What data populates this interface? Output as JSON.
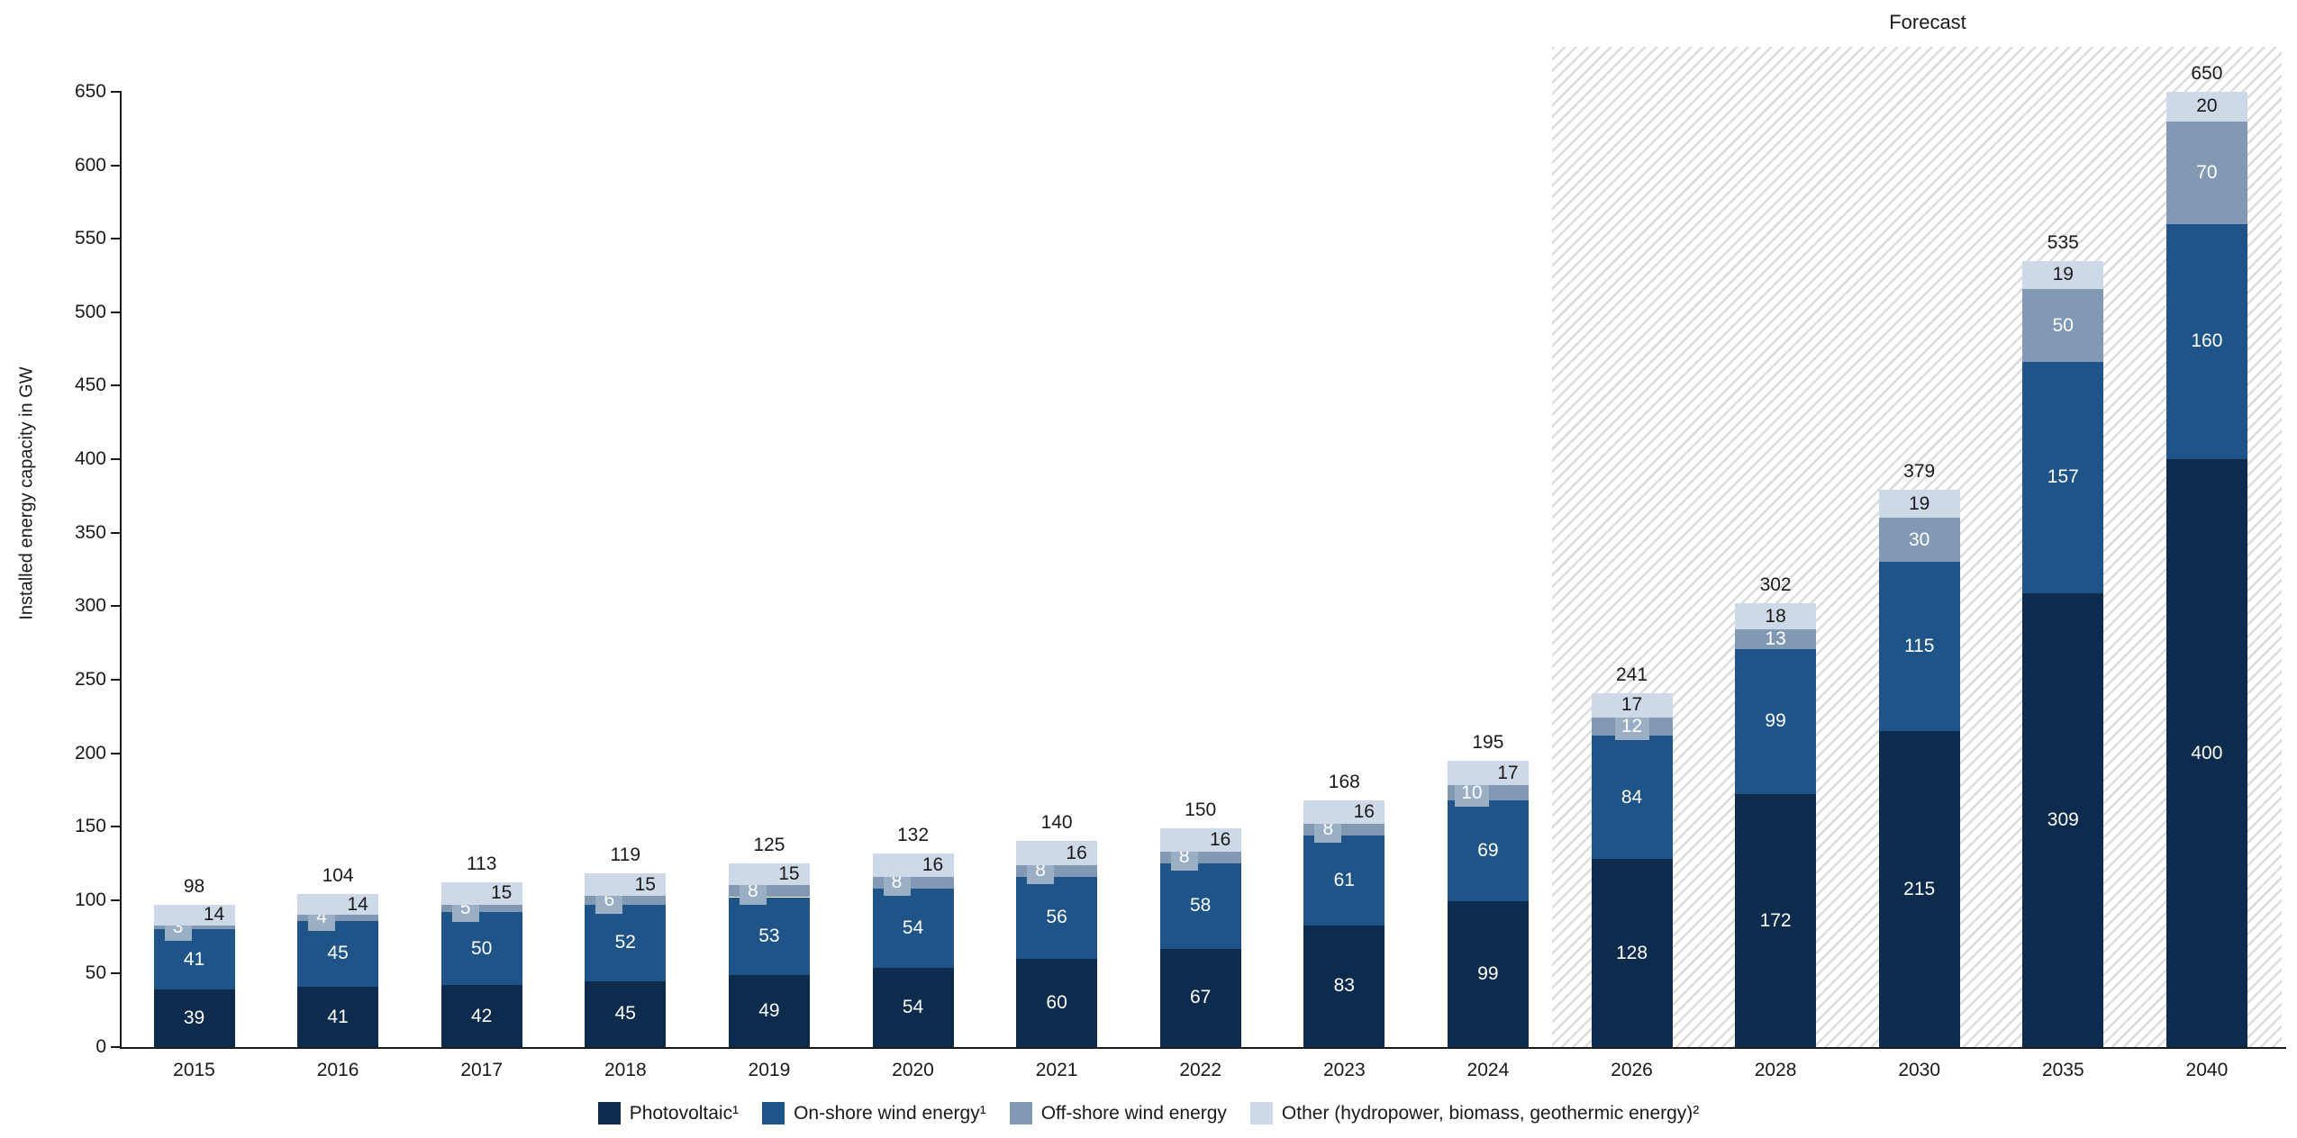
{
  "chart_data": {
    "type": "bar",
    "stacked": true,
    "ylabel": "Installed energy capacity in GW",
    "forecast_label": "Forecast",
    "ylim": [
      0,
      650
    ],
    "ytick_step": 50,
    "grid": false,
    "legend_position": "bottom",
    "categories": [
      "2015",
      "2016",
      "2017",
      "2018",
      "2019",
      "2020",
      "2021",
      "2022",
      "2023",
      "2024",
      "2026",
      "2028",
      "2030",
      "2035",
      "2040"
    ],
    "forecast_from_index": 10,
    "series": [
      {
        "name": "Photovoltaic¹",
        "color": "#0d2b4d",
        "label_color": "#ffffff",
        "values": [
          39,
          41,
          42,
          45,
          49,
          54,
          60,
          67,
          83,
          99,
          128,
          172,
          215,
          309,
          400
        ]
      },
      {
        "name": "On-shore wind energy¹",
        "color": "#1f5488",
        "label_color": "#ffffff",
        "values": [
          41,
          45,
          50,
          52,
          53,
          54,
          56,
          58,
          61,
          69,
          84,
          99,
          115,
          157,
          160
        ]
      },
      {
        "name": "Off-shore wind energy",
        "color": "#8299b4",
        "label_color": "#ffffff",
        "values": [
          3,
          4,
          5,
          6,
          8,
          8,
          8,
          8,
          8,
          10,
          12,
          13,
          30,
          50,
          70
        ]
      },
      {
        "name": "Other (hydropower, biomass, geothermic energy)²",
        "color": "#cdd9e7",
        "label_color": "#1a1a1a",
        "values": [
          14,
          14,
          15,
          15,
          15,
          16,
          16,
          16,
          16,
          17,
          17,
          18,
          19,
          19,
          20
        ]
      }
    ],
    "totals": [
      98,
      104,
      113,
      119,
      125,
      132,
      140,
      150,
      168,
      195,
      241,
      302,
      379,
      535,
      650
    ],
    "offshore_box_color": "#9bafc4"
  }
}
